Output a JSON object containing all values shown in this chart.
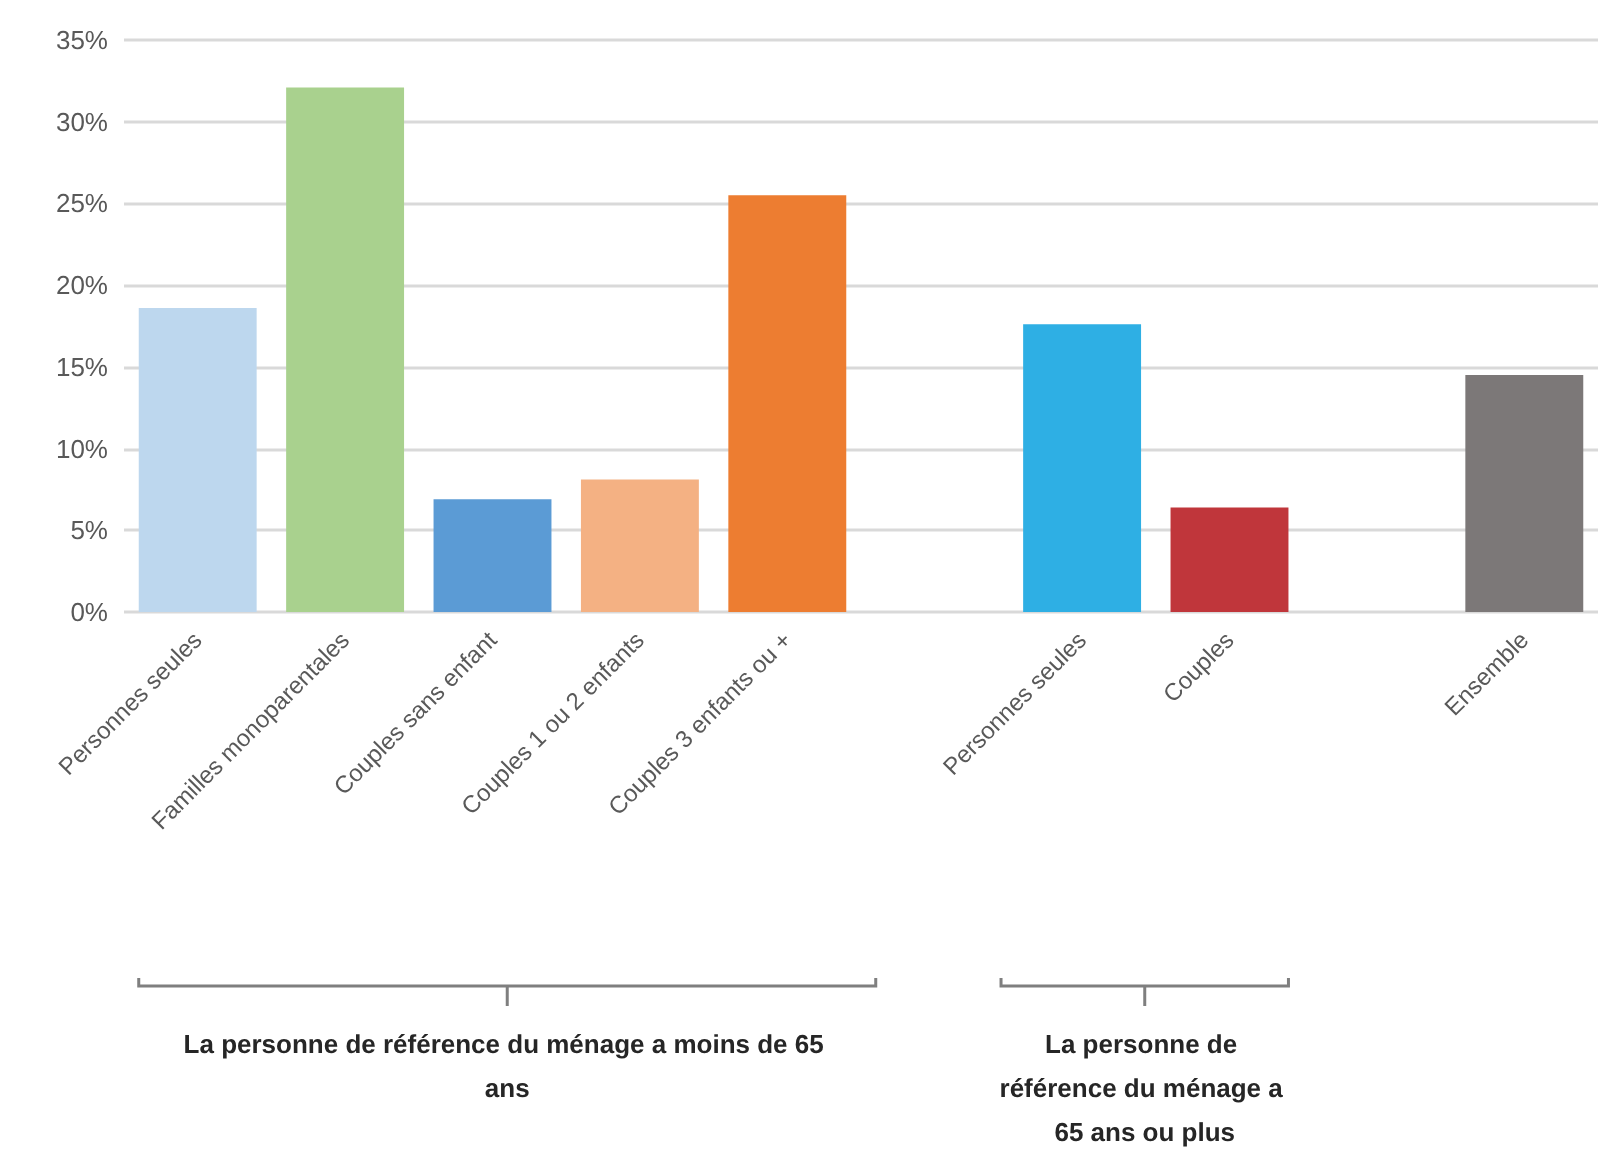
{
  "chart_data": {
    "type": "bar",
    "categories": [
      "Personnes seules",
      "Familles monoparentales",
      "Couples sans enfant",
      "Couples 1 ou 2 enfants",
      "Couples 3 enfants ou +",
      null,
      "Personnes seules",
      "Couples",
      null,
      "Ensemble"
    ],
    "values": [
      18.6,
      32.1,
      6.9,
      8.1,
      25.5,
      null,
      17.6,
      6.4,
      null,
      14.5
    ],
    "colors": [
      "#bdd7ee",
      "#a9d18e",
      "#5b9bd5",
      "#f4b183",
      "#ed7d31",
      "#ffffff",
      "#2eafe4",
      "#c0363b",
      "#ffffff",
      "#7c7878"
    ],
    "ylim": [
      0,
      35
    ],
    "yticks": [
      {
        "value": 0,
        "label": "0%"
      },
      {
        "value": 5,
        "label": "5%"
      },
      {
        "value": 10,
        "label": "10%"
      },
      {
        "value": 15,
        "label": "15%"
      },
      {
        "value": 20,
        "label": "20%"
      },
      {
        "value": 25,
        "label": "25%"
      },
      {
        "value": 30,
        "label": "30%"
      },
      {
        "value": 35,
        "label": "35%"
      }
    ],
    "grid": "y",
    "annotations": [
      "La personne de référence du ménage a moins de 65 ans",
      "La personne de référence du ménage a 65 ans ou plus"
    ]
  }
}
